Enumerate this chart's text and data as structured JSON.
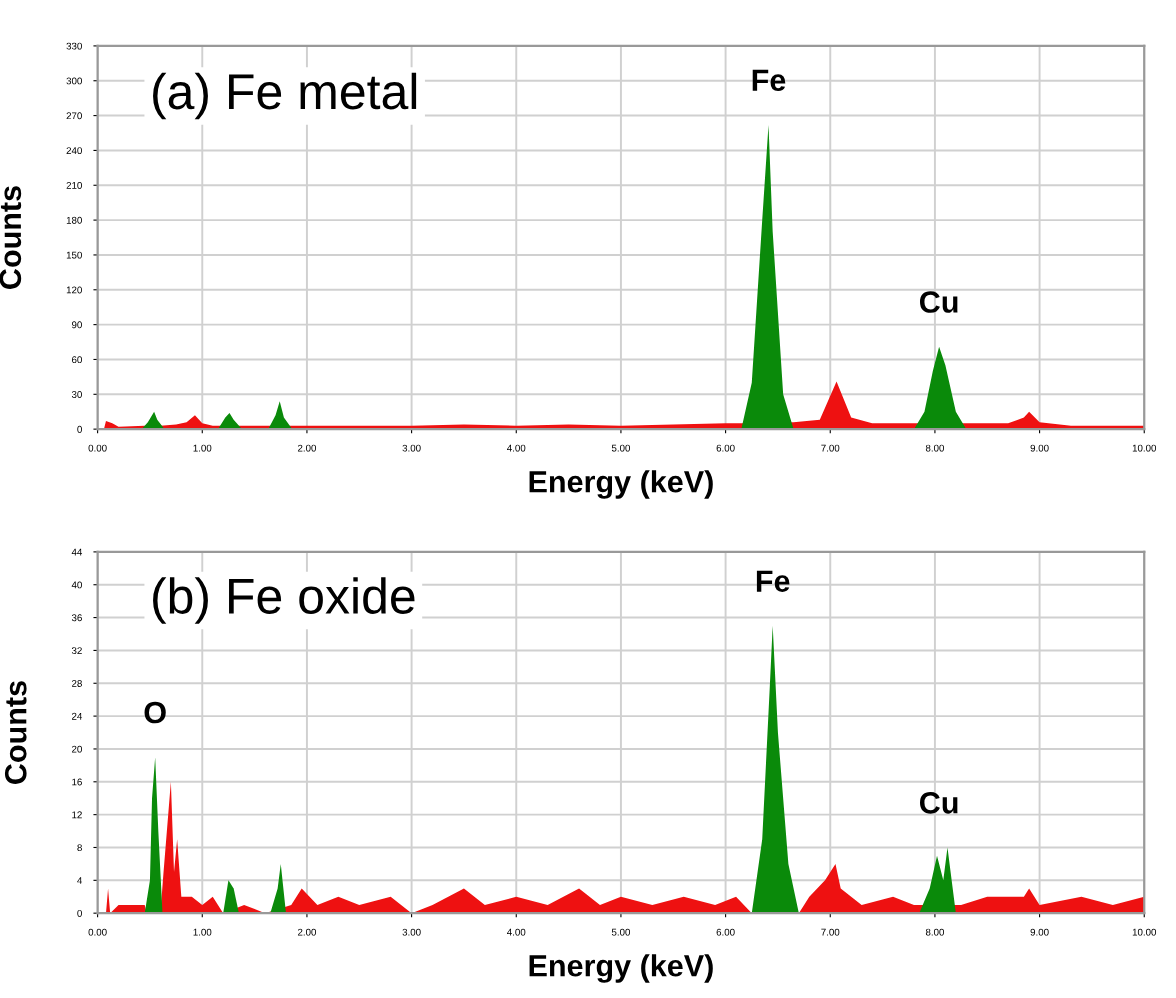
{
  "chart_data": [
    {
      "type": "area",
      "title": "(a) Fe metal",
      "xlabel": "Energy (keV)",
      "ylabel": "Counts",
      "xlim": [
        0,
        10
      ],
      "ylim": [
        0,
        330
      ],
      "xticks": [
        {
          "value": 0,
          "label": "0.00"
        },
        {
          "value": 1,
          "label": "1.00"
        },
        {
          "value": 2,
          "label": "2.00"
        },
        {
          "value": 3,
          "label": "3.00"
        },
        {
          "value": 4,
          "label": "4.00"
        },
        {
          "value": 5,
          "label": "5.00"
        },
        {
          "value": 6,
          "label": "6.00"
        },
        {
          "value": 7,
          "label": "7.00"
        },
        {
          "value": 8,
          "label": "8.00"
        },
        {
          "value": 9,
          "label": "9.00"
        },
        {
          "value": 10,
          "label": "10.00"
        }
      ],
      "yticks": [
        0,
        30,
        60,
        90,
        120,
        150,
        180,
        210,
        240,
        270,
        300,
        330
      ],
      "grid": true,
      "series": [
        {
          "color": "#ee1111",
          "x": [
            0,
            0.06,
            0.08,
            0.14,
            0.2,
            0.45,
            0.6,
            0.75,
            0.85,
            0.93,
            1.0,
            1.1,
            1.4,
            1.6,
            1.9,
            2.5,
            3.0,
            3.5,
            4.0,
            4.5,
            5.0,
            5.5,
            6.0,
            6.15,
            6.65,
            6.9,
            7.06,
            7.2,
            7.4,
            7.8,
            8.3,
            8.7,
            8.85,
            8.9,
            9.0,
            9.3,
            10
          ],
          "values": [
            0,
            0,
            7,
            5,
            2,
            3,
            3,
            4,
            6,
            12,
            5,
            3,
            3,
            3,
            3,
            3,
            3,
            4,
            3,
            4,
            3,
            4,
            5,
            5,
            6,
            8,
            41,
            10,
            5,
            5,
            5,
            5,
            10,
            15,
            6,
            3,
            3
          ]
        },
        {
          "color": "#0a8a0a",
          "x": [
            0.42,
            0.48,
            0.52,
            0.54,
            0.57,
            0.64
          ],
          "values": [
            0,
            6,
            12,
            15,
            8,
            0
          ]
        },
        {
          "color": "#0a8a0a",
          "x": [
            1.15,
            1.22,
            1.26,
            1.3,
            1.38
          ],
          "values": [
            0,
            10,
            14,
            8,
            0
          ]
        },
        {
          "color": "#0a8a0a",
          "x": [
            1.63,
            1.7,
            1.74,
            1.78,
            1.86
          ],
          "values": [
            0,
            12,
            24,
            10,
            0
          ]
        },
        {
          "color": "#0a8a0a",
          "x": [
            6.15,
            6.25,
            6.35,
            6.41,
            6.45,
            6.55,
            6.65
          ],
          "values": [
            0,
            40,
            180,
            262,
            170,
            30,
            0
          ]
        },
        {
          "color": "#0a8a0a",
          "x": [
            7.8,
            7.9,
            7.98,
            8.04,
            8.1,
            8.2,
            8.3
          ],
          "values": [
            0,
            15,
            50,
            71,
            55,
            15,
            0
          ]
        }
      ],
      "annotations": [
        {
          "text": "Fe",
          "x": 6.41,
          "y": 262
        },
        {
          "text": "Cu",
          "x": 8.04,
          "y": 71
        }
      ]
    },
    {
      "type": "area",
      "title": "(b) Fe oxide",
      "xlabel": "Energy (keV)",
      "ylabel": "Counts",
      "xlim": [
        0,
        10
      ],
      "ylim": [
        0,
        44
      ],
      "xticks": [
        {
          "value": 0,
          "label": "0.00"
        },
        {
          "value": 1,
          "label": "1.00"
        },
        {
          "value": 2,
          "label": "2.00"
        },
        {
          "value": 3,
          "label": "3.00"
        },
        {
          "value": 4,
          "label": "4.00"
        },
        {
          "value": 5,
          "label": "5.00"
        },
        {
          "value": 6,
          "label": "6.00"
        },
        {
          "value": 7,
          "label": "7.00"
        },
        {
          "value": 8,
          "label": "8.00"
        },
        {
          "value": 9,
          "label": "9.00"
        },
        {
          "value": 10,
          "label": "10.00"
        }
      ],
      "yticks": [
        0,
        4,
        8,
        12,
        16,
        20,
        24,
        28,
        32,
        36,
        40,
        44
      ],
      "grid": true,
      "series": [
        {
          "color": "#ee1111",
          "x": [
            0,
            0.08,
            0.1,
            0.12,
            0.2,
            0.45,
            0.47,
            0.6,
            0.63,
            0.7,
            0.73,
            0.76,
            0.8,
            0.9,
            1.0,
            1.1,
            1.2,
            1.4,
            1.6,
            1.85,
            1.95,
            2.1,
            2.3,
            2.5,
            2.8,
            3.0,
            3.2,
            3.5,
            3.7,
            4.0,
            4.3,
            4.6,
            4.8,
            5.0,
            5.3,
            5.6,
            5.9,
            6.1,
            6.25,
            6.7,
            6.8,
            6.95,
            7.05,
            7.1,
            7.3,
            7.6,
            7.8,
            8.25,
            8.5,
            8.85,
            8.9,
            9.0,
            9.4,
            9.7,
            10
          ],
          "values": [
            0,
            0,
            3,
            0,
            1,
            1,
            0,
            0,
            5,
            16,
            5,
            9,
            2,
            2,
            1,
            2,
            0,
            1,
            0,
            1,
            3,
            1,
            2,
            1,
            2,
            0,
            1,
            3,
            1,
            2,
            1,
            3,
            1,
            2,
            1,
            2,
            1,
            2,
            0,
            0,
            2,
            4,
            6,
            3,
            1,
            2,
            1,
            1,
            2,
            2,
            3,
            1,
            2,
            1,
            2
          ]
        },
        {
          "color": "#0a8a0a",
          "x": [
            0.45,
            0.5,
            0.52,
            0.55,
            0.58,
            0.62
          ],
          "values": [
            0,
            4,
            14,
            19,
            10,
            0
          ]
        },
        {
          "color": "#0a8a0a",
          "x": [
            1.2,
            1.25,
            1.3,
            1.35
          ],
          "values": [
            0,
            4,
            3,
            0
          ]
        },
        {
          "color": "#0a8a0a",
          "x": [
            1.65,
            1.72,
            1.75,
            1.8
          ],
          "values": [
            0,
            3,
            6,
            0
          ]
        },
        {
          "color": "#0a8a0a",
          "x": [
            6.25,
            6.35,
            6.42,
            6.45,
            6.5,
            6.6,
            6.7
          ],
          "values": [
            0,
            9,
            27,
            35,
            22,
            6,
            0
          ]
        },
        {
          "color": "#0a8a0a",
          "x": [
            7.85,
            7.95,
            8.02,
            8.08,
            8.12,
            8.2
          ],
          "values": [
            0,
            3,
            7,
            4,
            8,
            0
          ]
        }
      ],
      "annotations": [
        {
          "text": "O",
          "x": 0.55,
          "y": 19
        },
        {
          "text": "Fe",
          "x": 6.45,
          "y": 35
        },
        {
          "text": "Cu",
          "x": 8.04,
          "y": 8
        }
      ]
    }
  ]
}
